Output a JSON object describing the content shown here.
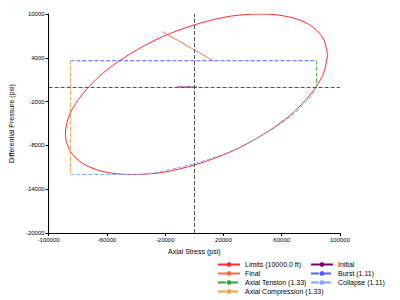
{
  "chart_data": {
    "type": "line",
    "x_label": "Axial Stress (psi)",
    "y_label": "Differential Pressure (psi)",
    "xlim": [
      -100000,
      100000
    ],
    "xticks": [
      -100000,
      -60000,
      -20000,
      20000,
      60000,
      100000
    ],
    "ylim": [
      -20000,
      10000
    ],
    "yticks": [
      -20000,
      -14000,
      -8000,
      -2000,
      4000,
      10000
    ],
    "grid": false,
    "legend": "bottom right",
    "reference_lines": {
      "x": [
        0
      ],
      "y": [
        0
      ]
    },
    "series": [
      {
        "name": "Limits (10000.0 ft)",
        "color": "#ff2a2a",
        "line_style": "solid",
        "marker": "none",
        "x": [
          91500,
          88400,
          79400,
          65100,
          46500,
          24800,
          1500,
          -21800,
          -43500,
          -62100,
          -76400,
          -85400,
          -88500,
          -85400,
          -76400,
          -62100,
          -43500,
          -21800,
          1500,
          24800,
          46500,
          65100,
          79400,
          88400,
          91500
        ],
        "values": [
          4400,
          6700,
          8500,
          9600,
          10000,
          9700,
          8600,
          6900,
          4600,
          2000,
          -900,
          -3700,
          -6400,
          -8700,
          -10500,
          -11600,
          -12000,
          -11700,
          -10600,
          -8900,
          -6600,
          -4000,
          -1100,
          1700,
          4400
        ]
      },
      {
        "name": "Initial",
        "color": "#800080",
        "line_style": "solid",
        "marker": "none",
        "x": [
          -12000,
          2000
        ],
        "values": [
          0,
          0
        ]
      },
      {
        "name": "Final",
        "color": "#f26b45",
        "line_style": "solid",
        "marker": "none",
        "x": [
          -22000,
          13000
        ],
        "values": [
          7600,
          3600
        ]
      },
      {
        "name": "Burst (1.11)",
        "color": "#5a5aff",
        "line_style": "dashed",
        "marker": "none",
        "x": [
          -85000,
          84000
        ],
        "values": [
          3600,
          3600
        ]
      },
      {
        "name": "Axial Tension (1.33)",
        "color": "#2ea82e",
        "line_style": "dashed",
        "marker": "none",
        "x": [
          84000,
          84000
        ],
        "values": [
          3600,
          0
        ]
      },
      {
        "name": "Collapse (1.11)",
        "color": "#7fa8ff",
        "line_style": "dashed",
        "marker": "none",
        "x": [
          -85000,
          -40000,
          -10000,
          20000,
          45000,
          65000,
          78000,
          84000
        ],
        "values": [
          -12000,
          -12000,
          -11000,
          -9200,
          -6800,
          -4200,
          -1800,
          0
        ]
      },
      {
        "name": "Axial Compression (1.33)",
        "color": "#ff9933",
        "line_style": "dashed",
        "marker": "none",
        "x": [
          -85000,
          -85000
        ],
        "values": [
          3600,
          -12000
        ]
      }
    ]
  }
}
